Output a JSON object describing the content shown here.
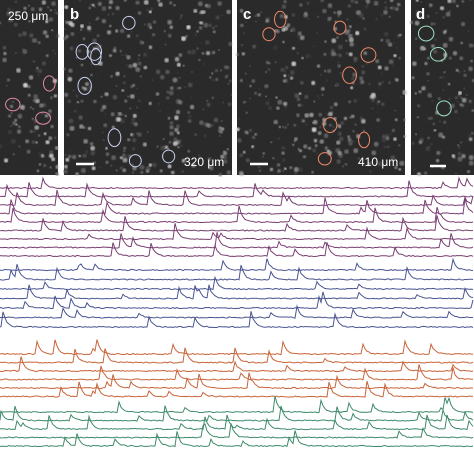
{
  "panels": [
    {
      "scale_label": "250 μm"
    },
    {
      "label": "b",
      "scale_label": "320 μm"
    },
    {
      "label": "c",
      "scale_label": "410 μm"
    },
    {
      "label": "d"
    }
  ]
}
